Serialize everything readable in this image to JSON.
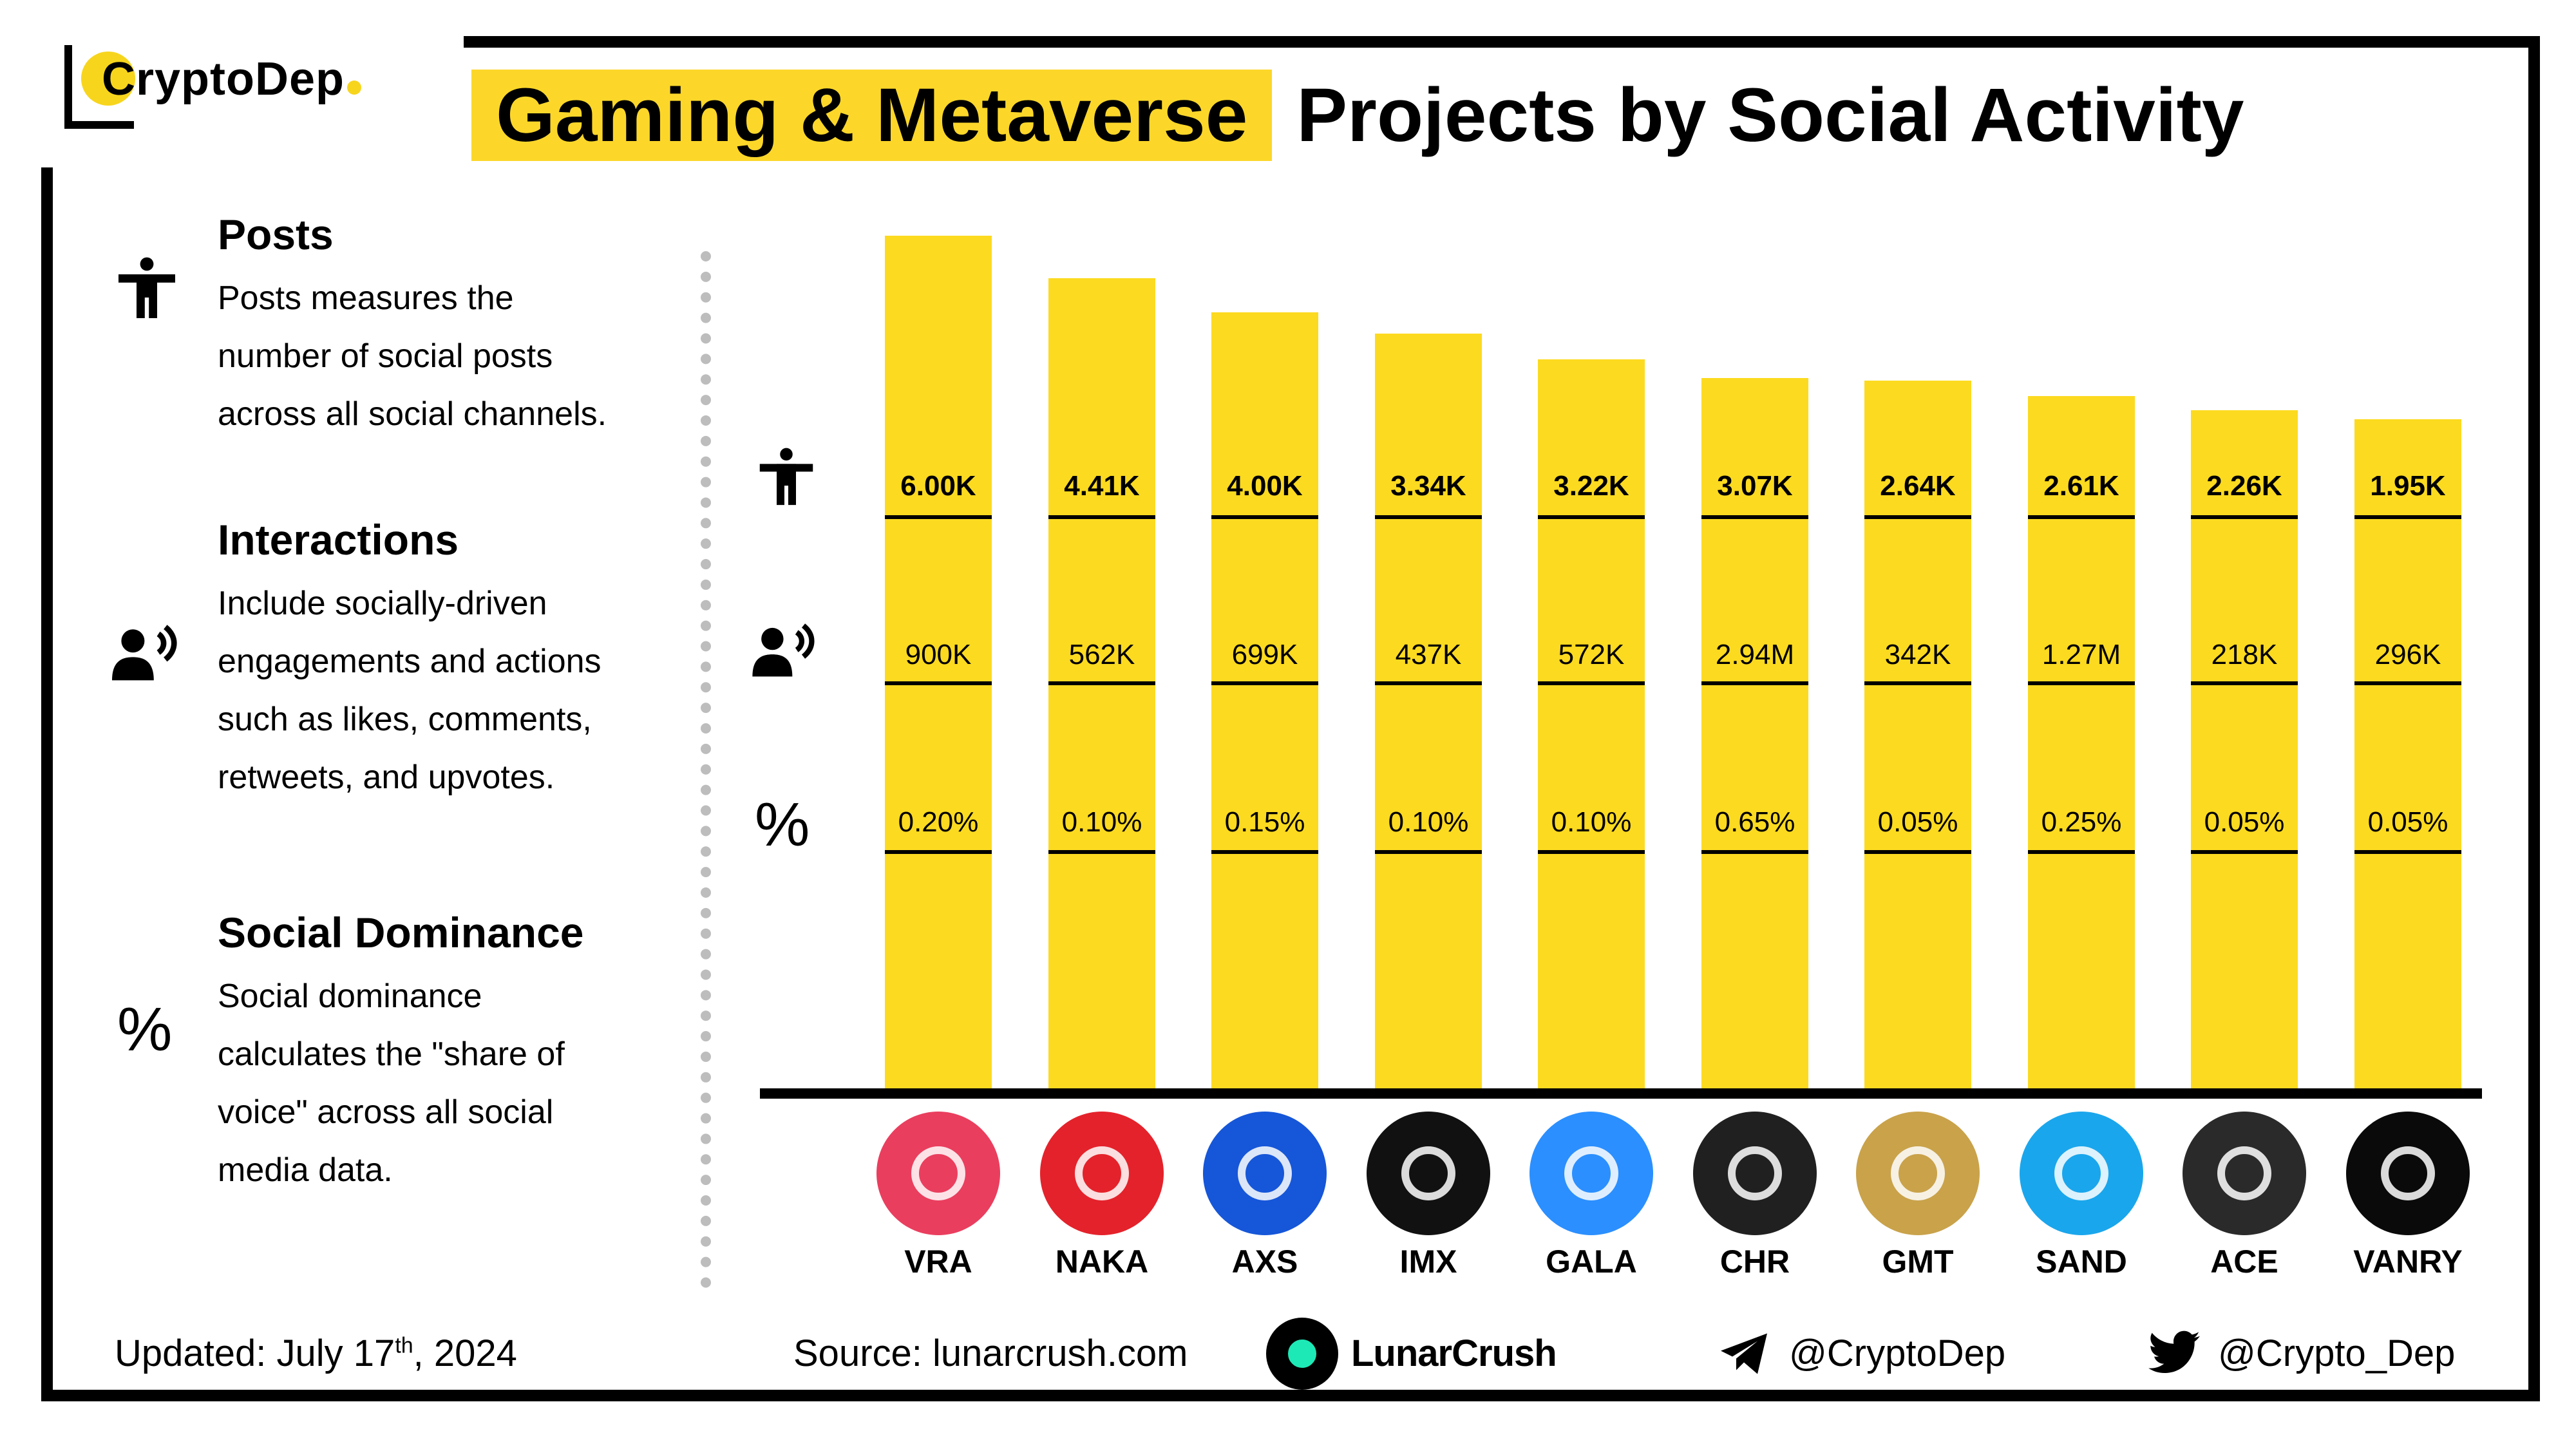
{
  "brand": {
    "name": "CryptoDep"
  },
  "title": {
    "highlight": "Gaming & Metaverse",
    "rest": "Projects by Social Activity"
  },
  "legend": [
    {
      "icon": "person-icon",
      "heading": "Posts",
      "desc": [
        "Posts measures the",
        "number of social posts",
        "across all social channels."
      ]
    },
    {
      "icon": "speaking-person-icon",
      "heading": "Interactions",
      "desc": [
        "Include socially-driven",
        "engagements and actions",
        "such as likes, comments,",
        "retweets, and upvotes."
      ]
    },
    {
      "icon": "percent-icon",
      "heading": "Social Dominance",
      "desc": [
        "Social dominance",
        "calculates the \"share of",
        "voice\" across all social",
        "media data."
      ]
    }
  ],
  "percent_symbol": "%",
  "colors": {
    "bar": "#fcda20",
    "highlight": "#fcd72a",
    "frame": "#000000"
  },
  "chart_data": {
    "type": "bar",
    "title": "Gaming & Metaverse Projects by Social Activity",
    "categories": [
      "VRA",
      "NAKA",
      "AXS",
      "IMX",
      "GALA",
      "CHR",
      "GMT",
      "SAND",
      "ACE",
      "VANRY"
    ],
    "series": [
      {
        "name": "Posts",
        "values": [
          6000,
          4410,
          4000,
          3340,
          3220,
          3070,
          2640,
          2610,
          2260,
          1950
        ],
        "labels": [
          "6.00K",
          "4.41K",
          "4.00K",
          "3.34K",
          "3.22K",
          "3.07K",
          "2.64K",
          "2.61K",
          "2.26K",
          "1.95K"
        ]
      },
      {
        "name": "Interactions",
        "values": [
          900000,
          562000,
          699000,
          437000,
          572000,
          2940000,
          342000,
          1270000,
          218000,
          296000
        ],
        "labels": [
          "900K",
          "562K",
          "699K",
          "437K",
          "572K",
          "2.94M",
          "342K",
          "1.27M",
          "218K",
          "296K"
        ]
      },
      {
        "name": "Social Dominance",
        "values": [
          0.2,
          0.1,
          0.15,
          0.1,
          0.1,
          0.65,
          0.05,
          0.25,
          0.05,
          0.05
        ],
        "labels": [
          "0.20%",
          "0.10%",
          "0.15%",
          "0.10%",
          "0.10%",
          "0.65%",
          "0.05%",
          "0.25%",
          "0.05%",
          "0.05%"
        ]
      }
    ],
    "bar_heights_relative": [
      1.0,
      0.95,
      0.91,
      0.885,
      0.855,
      0.833,
      0.83,
      0.812,
      0.795,
      0.785
    ],
    "logo_colors": [
      "#ea3e5e",
      "#e4222b",
      "#1656d8",
      "#111111",
      "#2b8fff",
      "#202020",
      "#c9a24a",
      "#1aa6ec",
      "#2a2a2a",
      "#0a0a0a"
    ]
  },
  "footer": {
    "updated_label": "Updated:",
    "updated_date": "July 17",
    "updated_suffix": "th",
    "updated_year": ", 2024",
    "source_label": "Source:",
    "source_value": "lunarcrush.com",
    "lunarcrush": "LunarCrush",
    "telegram": "@CryptoDep",
    "twitter": "@Crypto_Dep"
  }
}
